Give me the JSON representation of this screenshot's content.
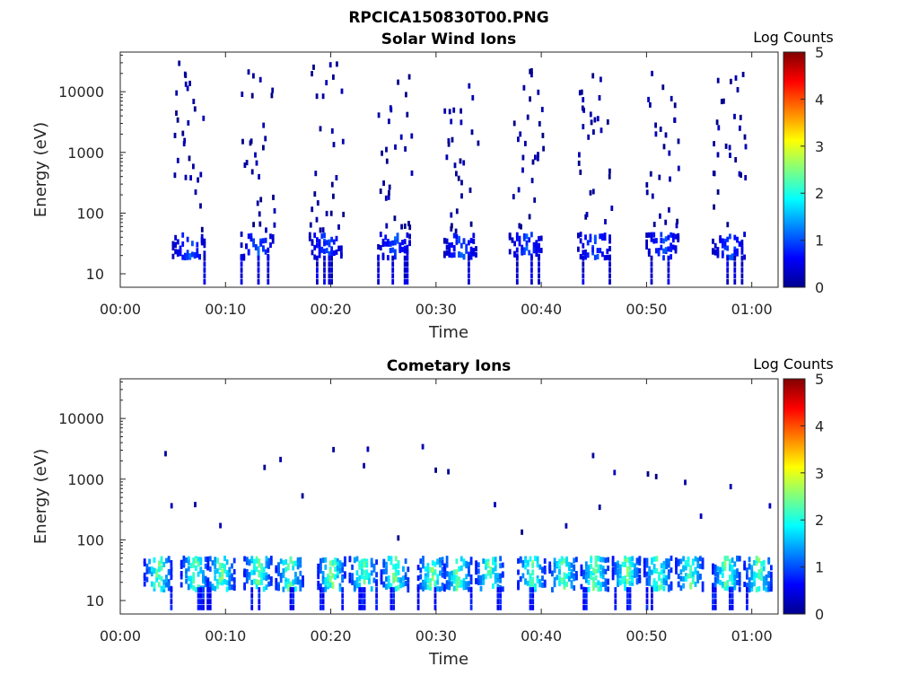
{
  "figure_title": "RPCICA150830T00.PNG",
  "colors": {
    "colormap": "jet",
    "axes": "#262626",
    "background": "#ffffff"
  },
  "chart_data": [
    {
      "type": "heatmap",
      "title": "Solar Wind Ions",
      "xlabel": "Time",
      "ylabel": "Energy (eV)",
      "x_unit": "hh:mm",
      "x_range_min": [
        0,
        62.5
      ],
      "y_scale": "log",
      "ylim": [
        6,
        45000
      ],
      "xticks": [
        "00:00",
        "00:10",
        "00:20",
        "00:30",
        "00:40",
        "00:50",
        "01:00"
      ],
      "yticks": [
        "10",
        "100",
        "1000",
        "10000"
      ],
      "colorbar": {
        "label": "Log Counts",
        "range": [
          0,
          5
        ],
        "ticks": [
          "0",
          "1",
          "2",
          "3",
          "4",
          "5"
        ]
      },
      "bursts_center_min": [
        6.5,
        13,
        19.5,
        26,
        32.3,
        38.5,
        45,
        51.5,
        57.8
      ],
      "features": {
        "low_energy_band_eV": [
          18,
          45
        ],
        "low_energy_band_log_counts": [
          0.2,
          1.2
        ],
        "scattered_counts_eV": [
          50,
          30000
        ],
        "scattered_log_counts": [
          0,
          0.3
        ]
      }
    },
    {
      "type": "heatmap",
      "title": "Cometary Ions",
      "xlabel": "Time",
      "ylabel": "Energy (eV)",
      "x_unit": "hh:mm",
      "x_range_min": [
        0,
        62.5
      ],
      "y_scale": "log",
      "ylim": [
        6,
        45000
      ],
      "xticks": [
        "00:00",
        "00:10",
        "00:20",
        "00:30",
        "00:40",
        "00:50",
        "01:00"
      ],
      "yticks": [
        "10",
        "100",
        "1000",
        "10000"
      ],
      "colorbar": {
        "label": "Log Counts",
        "range": [
          0,
          5
        ],
        "ticks": [
          "0",
          "1",
          "2",
          "3",
          "4",
          "5"
        ]
      },
      "bursts_center_min": [
        3.5,
        7,
        9.5,
        13,
        16,
        20,
        23,
        26,
        29.5,
        32,
        35,
        39,
        42,
        45,
        48,
        51,
        54,
        57.5,
        60.5
      ],
      "features": {
        "low_energy_band_eV": [
          15,
          50
        ],
        "low_energy_band_log_counts": [
          0.5,
          2.8
        ],
        "scattered_counts_eV": [
          100,
          11000
        ],
        "scattered_log_counts": [
          0,
          0.3
        ]
      }
    }
  ]
}
